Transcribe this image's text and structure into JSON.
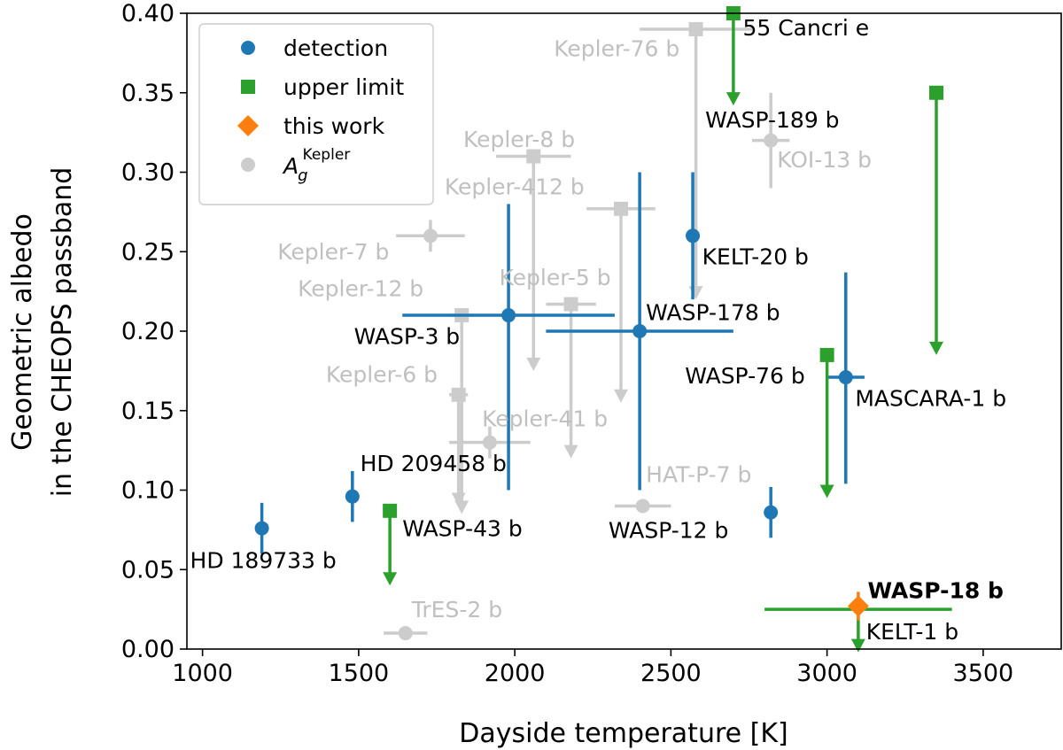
{
  "chart_data": {
    "type": "scatter",
    "xlabel": "Dayside temperature [K]",
    "ylabel_lines": [
      "Geometric albedo",
      "in the CHEOPS passband"
    ],
    "xlim": [
      950,
      3750
    ],
    "ylim": [
      0.0,
      0.4
    ],
    "x_ticks": [
      1000,
      1500,
      2000,
      2500,
      3000,
      3500
    ],
    "x_tick_labels": [
      "1000",
      "1500",
      "2000",
      "2500",
      "3000",
      "3500"
    ],
    "y_ticks": [
      0.0,
      0.05,
      0.1,
      0.15,
      0.2,
      0.25,
      0.3,
      0.35,
      0.4
    ],
    "y_tick_labels": [
      "0.00",
      "0.05",
      "0.10",
      "0.15",
      "0.20",
      "0.25",
      "0.30",
      "0.35",
      "0.40"
    ],
    "grid": false,
    "legend_position": "top-left",
    "legend": [
      {
        "key": "detection",
        "label": "detection",
        "marker": "circle",
        "color": "#1f77b4"
      },
      {
        "key": "upper_limit",
        "label": "upper limit",
        "marker": "square",
        "color": "#2ca02c"
      },
      {
        "key": "this_work",
        "label": "this work",
        "marker": "diamond",
        "color": "#ff7f0e"
      },
      {
        "key": "kepler",
        "label": "A",
        "label_sub": "g",
        "label_sup": "Kepler",
        "marker": "circle",
        "color": "#cccccc"
      }
    ],
    "colors": {
      "detection": "#1f77b4",
      "upper_limit": "#2ca02c",
      "this_work": "#ff7f0e",
      "kepler": "#cccccc",
      "kepler_text": "#c0c0c0"
    },
    "series": {
      "kepler": [
        {
          "name": "Kepler-76 b",
          "x": 2580,
          "y": 0.39,
          "xerr": 180,
          "ylo": 0.22,
          "yhi": 0.39,
          "marker": "square",
          "arrow": true
        },
        {
          "name": "Kepler-8 b",
          "x": 2060,
          "y": 0.31,
          "xerr": 120,
          "ylo": 0.175,
          "yhi": 0.31,
          "marker": "square",
          "arrow": true
        },
        {
          "name": "Kepler-412 b",
          "x": 2340,
          "y": 0.277,
          "xerr": 110,
          "ylo": 0.155,
          "yhi": 0.277,
          "marker": "square",
          "arrow": true
        },
        {
          "name": "KOI-13 b",
          "x": 2820,
          "y": 0.32,
          "xerr": 60,
          "ylo": 0.29,
          "yhi": 0.35
        },
        {
          "name": "Kepler-7 b",
          "x": 1730,
          "y": 0.26,
          "xerr": 110,
          "ylo": 0.25,
          "yhi": 0.27
        },
        {
          "name": "Kepler-12 b",
          "x": 1830,
          "y": 0.21,
          "xerr": 40,
          "ylo": 0.085,
          "yhi": 0.21,
          "marker": "square",
          "arrow": true
        },
        {
          "name": "Kepler-5 b",
          "x": 2180,
          "y": 0.217,
          "xerr": 80,
          "ylo": 0.12,
          "yhi": 0.217,
          "marker": "square",
          "arrow": true
        },
        {
          "name": "Kepler-6 b",
          "x": 1820,
          "y": 0.16,
          "xerr": 30,
          "ylo": 0.09,
          "yhi": 0.16,
          "marker": "square",
          "arrow": true
        },
        {
          "name": "Kepler-41 b",
          "x": 1920,
          "y": 0.13,
          "xerr": 130,
          "ylo": 0.12,
          "yhi": 0.14
        },
        {
          "name": "HAT-P-7 b",
          "x": 2410,
          "y": 0.09,
          "xerr": 90,
          "ylo": 0.09,
          "yhi": 0.09
        },
        {
          "name": "TrES-2 b",
          "x": 1650,
          "y": 0.01,
          "xerr": 70,
          "ylo": 0.008,
          "yhi": 0.012
        }
      ],
      "detection": [
        {
          "name": "KELT-20 b",
          "x": 2570,
          "y": 0.26,
          "xerr": 0,
          "ylo": 0.22,
          "yhi": 0.3
        },
        {
          "name": "WASP-3 b",
          "x": 1980,
          "y": 0.21,
          "xerr": 340,
          "ylo": 0.1,
          "yhi": 0.28
        },
        {
          "name": "WASP-178 b",
          "x": 2400,
          "y": 0.2,
          "xerr": 300,
          "ylo": 0.1,
          "yhi": 0.3
        },
        {
          "name": "MASCARA-1 b",
          "x": 3060,
          "y": 0.171,
          "xerr": 60,
          "ylo": 0.104,
          "yhi": 0.237
        },
        {
          "name": "HD 209458 b",
          "x": 1480,
          "y": 0.096,
          "xerr": 0,
          "ylo": 0.08,
          "yhi": 0.112
        },
        {
          "name": "HD 189733 b",
          "x": 1190,
          "y": 0.076,
          "xerr": 0,
          "ylo": 0.06,
          "yhi": 0.092
        },
        {
          "name": "",
          "x": 2820,
          "y": 0.086,
          "xerr": 0,
          "ylo": 0.07,
          "yhi": 0.102
        }
      ],
      "upper_limit": [
        {
          "name": "55 Cancri e",
          "x": 2700,
          "y": 0.4,
          "arrow_to": 0.342
        },
        {
          "name": "WASP-189 b",
          "x": 3350,
          "y": 0.35,
          "arrow_to": 0.185
        },
        {
          "name": "WASP-76 b",
          "x": 3000,
          "y": 0.185,
          "arrow_to": 0.095
        },
        {
          "name": "WASP-43 b",
          "x": 1600,
          "y": 0.087,
          "arrow_to": 0.04
        },
        {
          "name": "KELT-1 b",
          "x": 3100,
          "y": 0.025,
          "xerr": 300,
          "arrow_to": -0.002,
          "no_marker": true
        }
      ],
      "this_work": [
        {
          "name": "WASP-18 b",
          "x": 3100,
          "y": 0.027,
          "xerr": 0,
          "ylo": 0.018,
          "yhi": 0.036
        }
      ]
    },
    "text_labels": [
      {
        "text": "55 Cancri e",
        "x": 2730,
        "y": 0.386,
        "class": "normal"
      },
      {
        "text": "Kepler-76 b",
        "x": 2125,
        "y": 0.373,
        "class": "kepler"
      },
      {
        "text": "WASP-189 b",
        "x": 2610,
        "y": 0.328,
        "class": "normal"
      },
      {
        "text": "Kepler-8 b",
        "x": 1835,
        "y": 0.316,
        "class": "kepler"
      },
      {
        "text": "KOI-13 b",
        "x": 2840,
        "y": 0.303,
        "class": "kepler"
      },
      {
        "text": "Kepler-412 b",
        "x": 1775,
        "y": 0.286,
        "class": "kepler"
      },
      {
        "text": "Kepler-7 b",
        "x": 1240,
        "y": 0.245,
        "class": "kepler"
      },
      {
        "text": "KELT-20 b",
        "x": 2600,
        "y": 0.242,
        "class": "normal"
      },
      {
        "text": "Kepler-12 b",
        "x": 1305,
        "y": 0.222,
        "class": "kepler"
      },
      {
        "text": "Kepler-5 b",
        "x": 1950,
        "y": 0.229,
        "class": "kepler"
      },
      {
        "text": "WASP-178 b",
        "x": 2420,
        "y": 0.207,
        "class": "normal"
      },
      {
        "text": "WASP-3 b",
        "x": 1485,
        "y": 0.192,
        "class": "normal"
      },
      {
        "text": "WASP-76 b",
        "x": 2545,
        "y": 0.167,
        "class": "normal"
      },
      {
        "text": "Kepler-6 b",
        "x": 1395,
        "y": 0.168,
        "class": "kepler"
      },
      {
        "text": "MASCARA-1 b",
        "x": 3090,
        "y": 0.153,
        "class": "normal"
      },
      {
        "text": "Kepler-41 b",
        "x": 1895,
        "y": 0.14,
        "class": "kepler"
      },
      {
        "text": "HD 209458 b",
        "x": 1505,
        "y": 0.112,
        "class": "normal"
      },
      {
        "text": "HAT-P-7 b",
        "x": 2420,
        "y": 0.105,
        "class": "kepler"
      },
      {
        "text": "WASP-43 b",
        "x": 1640,
        "y": 0.071,
        "class": "normal"
      },
      {
        "text": "WASP-12 b",
        "x": 2300,
        "y": 0.07,
        "class": "normal"
      },
      {
        "text": "HD 189733 b",
        "x": 960,
        "y": 0.051,
        "class": "normal"
      },
      {
        "text": "WASP-18 b",
        "x": 3130,
        "y": 0.032,
        "class": "bold"
      },
      {
        "text": "TrES-2 b",
        "x": 1670,
        "y": 0.02,
        "class": "kepler"
      },
      {
        "text": "KELT-1 b",
        "x": 3125,
        "y": 0.006,
        "class": "normal"
      }
    ]
  }
}
